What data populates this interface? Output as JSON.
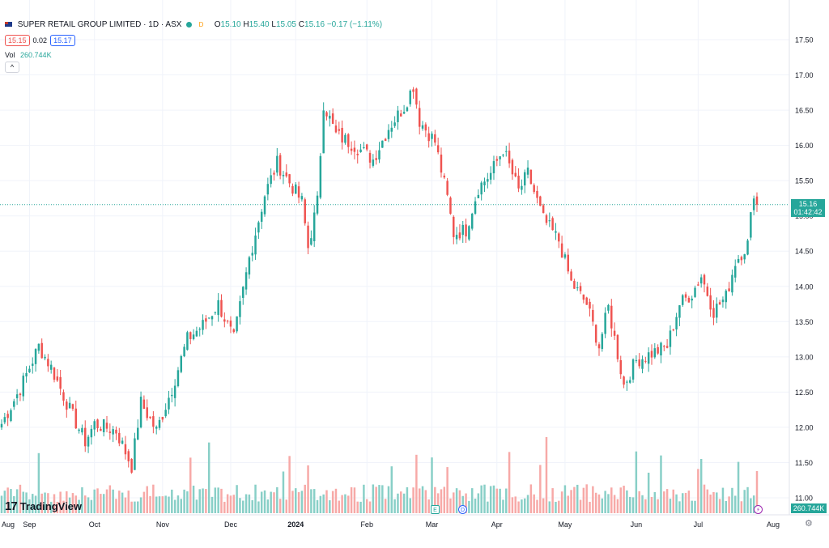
{
  "header": {
    "title": "SUPER RETAIL GROUP LIMITED · 1D · ASX",
    "d_badge": "D",
    "ohlc": [
      {
        "label": "O",
        "value": "15.10"
      },
      {
        "label": "H",
        "value": "15.40"
      },
      {
        "label": "L",
        "value": "15.05"
      },
      {
        "label": "C",
        "value": "15.16"
      }
    ],
    "change": "−0.17 (−1.11%)",
    "bid": "15.15",
    "spread": "0.02",
    "ask": "15.17",
    "vol_label": "Vol",
    "vol_value": "260.744K",
    "collapse_glyph": "^"
  },
  "brand": {
    "mark": "17",
    "name": "TradingView"
  },
  "price_tag": {
    "price": "15.16",
    "countdown": "01:42:42"
  },
  "vol_tag": "260.744K",
  "events": {
    "earnings": "E",
    "dividend": "D",
    "split": "⚡"
  },
  "colors": {
    "up": "#26a69a",
    "down": "#ef5350",
    "up_vol": "#88cfc7",
    "down_vol": "#f7a9a7",
    "grid": "#f0f3fa"
  },
  "chart_data": {
    "type": "candlestick",
    "y_axis": {
      "ticks": [
        "17.50",
        "17.00",
        "16.50",
        "16.00",
        "15.50",
        "15.00",
        "14.50",
        "14.00",
        "13.50",
        "13.00",
        "12.50",
        "12.00",
        "11.50",
        "11.00"
      ],
      "range": [
        10.9,
        17.65
      ]
    },
    "x_axis": {
      "ticks": [
        "Aug",
        "Sep",
        "Oct",
        "Nov",
        "Dec",
        "2024",
        "Feb",
        "Mar",
        "Apr",
        "May",
        "Jun",
        "Jul",
        "Aug"
      ]
    },
    "last_price": 15.16,
    "anchors": [
      [
        "2023-08-21",
        12.05
      ],
      [
        "2023-08-29",
        12.55
      ],
      [
        "2023-09-06",
        13.15
      ],
      [
        "2023-09-12",
        12.85
      ],
      [
        "2023-09-20",
        12.25
      ],
      [
        "2023-09-27",
        11.8
      ],
      [
        "2023-10-02",
        12.05
      ],
      [
        "2023-10-11",
        11.95
      ],
      [
        "2023-10-18",
        11.45
      ],
      [
        "2023-10-23",
        12.35
      ],
      [
        "2023-10-30",
        11.95
      ],
      [
        "2023-11-06",
        12.55
      ],
      [
        "2023-11-13",
        13.25
      ],
      [
        "2023-11-20",
        13.45
      ],
      [
        "2023-11-27",
        13.75
      ],
      [
        "2023-12-04",
        13.25
      ],
      [
        "2023-12-11",
        14.4
      ],
      [
        "2023-12-18",
        15.3
      ],
      [
        "2023-12-22",
        15.75
      ],
      [
        "2024-01-03",
        15.2
      ],
      [
        "2024-01-05",
        14.55
      ],
      [
        "2024-01-10",
        15.2
      ],
      [
        "2024-01-12",
        16.6
      ],
      [
        "2024-01-18",
        16.15
      ],
      [
        "2024-01-26",
        16.0
      ],
      [
        "2024-02-05",
        15.8
      ],
      [
        "2024-02-12",
        16.25
      ],
      [
        "2024-02-19",
        16.55
      ],
      [
        "2024-02-22",
        16.85
      ],
      [
        "2024-02-26",
        16.35
      ],
      [
        "2024-03-04",
        16.05
      ],
      [
        "2024-03-08",
        15.25
      ],
      [
        "2024-03-12",
        14.75
      ],
      [
        "2024-03-18",
        14.8
      ],
      [
        "2024-03-22",
        15.4
      ],
      [
        "2024-03-28",
        15.6
      ],
      [
        "2024-04-03",
        15.95
      ],
      [
        "2024-04-10",
        15.35
      ],
      [
        "2024-04-15",
        15.6
      ],
      [
        "2024-04-22",
        14.95
      ],
      [
        "2024-04-29",
        14.65
      ],
      [
        "2024-05-03",
        14.05
      ],
      [
        "2024-05-10",
        13.75
      ],
      [
        "2024-05-16",
        13.15
      ],
      [
        "2024-05-21",
        13.7
      ],
      [
        "2024-05-28",
        12.6
      ],
      [
        "2024-06-03",
        12.95
      ],
      [
        "2024-06-10",
        13.05
      ],
      [
        "2024-06-17",
        13.15
      ],
      [
        "2024-06-21",
        13.75
      ],
      [
        "2024-06-27",
        13.9
      ],
      [
        "2024-07-02",
        14.15
      ],
      [
        "2024-07-08",
        13.65
      ],
      [
        "2024-07-12",
        13.85
      ],
      [
        "2024-07-17",
        14.35
      ],
      [
        "2024-07-23",
        14.6
      ],
      [
        "2024-07-25",
        15.35
      ],
      [
        "2024-07-26",
        15.16
      ]
    ],
    "volume": {
      "range_max": 260744,
      "last": 260744
    }
  }
}
